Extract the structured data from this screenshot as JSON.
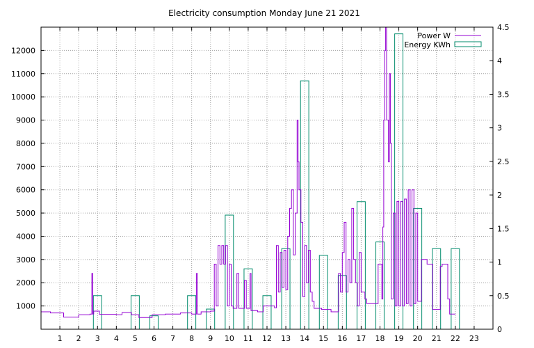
{
  "chart_data": {
    "type": "line",
    "title": "Electricity consumption Monday June 21 2021",
    "xlabel": "",
    "ylabel": "",
    "x_ticks": [
      "1",
      "2",
      "3",
      "4",
      "5",
      "6",
      "7",
      "8",
      "9",
      "10",
      "11",
      "12",
      "13",
      "14",
      "15",
      "16",
      "17",
      "18",
      "19",
      "20",
      "21",
      "22",
      "23"
    ],
    "xlim": [
      0,
      24
    ],
    "ylim": [
      0,
      13000
    ],
    "y_ticks": [
      "1000",
      "2000",
      "3000",
      "4000",
      "5000",
      "6000",
      "7000",
      "8000",
      "9000",
      "10000",
      "11000",
      "12000"
    ],
    "y2lim": [
      0,
      4.5
    ],
    "y2_ticks": [
      "0",
      "0.5",
      "1",
      "1.5",
      "2",
      "2.5",
      "3",
      "3.5",
      "4",
      "4.5"
    ],
    "grid": true,
    "legend_position": "top-right",
    "series": [
      {
        "name": "Power W",
        "axis": "left",
        "color": "#9400d3",
        "style": "steps",
        "points": [
          [
            0.0,
            750
          ],
          [
            0.5,
            700
          ],
          [
            1.2,
            520
          ],
          [
            2.0,
            620
          ],
          [
            2.6,
            650
          ],
          [
            2.7,
            2400
          ],
          [
            2.75,
            650
          ],
          [
            2.8,
            780
          ],
          [
            3.1,
            640
          ],
          [
            4.0,
            620
          ],
          [
            4.3,
            720
          ],
          [
            4.8,
            620
          ],
          [
            5.2,
            500
          ],
          [
            5.9,
            620
          ],
          [
            6.6,
            650
          ],
          [
            7.4,
            700
          ],
          [
            8.0,
            650
          ],
          [
            8.25,
            2400
          ],
          [
            8.3,
            650
          ],
          [
            8.5,
            750
          ],
          [
            9.0,
            780
          ],
          [
            9.2,
            2800
          ],
          [
            9.3,
            1000
          ],
          [
            9.4,
            3600
          ],
          [
            9.5,
            2800
          ],
          [
            9.6,
            3600
          ],
          [
            9.7,
            2800
          ],
          [
            9.8,
            3600
          ],
          [
            9.9,
            1000
          ],
          [
            10.0,
            2800
          ],
          [
            10.1,
            1000
          ],
          [
            10.2,
            900
          ],
          [
            10.4,
            2400
          ],
          [
            10.5,
            900
          ],
          [
            10.8,
            2100
          ],
          [
            10.9,
            900
          ],
          [
            11.1,
            2400
          ],
          [
            11.15,
            800
          ],
          [
            11.5,
            750
          ],
          [
            11.8,
            1000
          ],
          [
            12.4,
            920
          ],
          [
            12.5,
            3600
          ],
          [
            12.6,
            1600
          ],
          [
            12.7,
            3300
          ],
          [
            12.8,
            1800
          ],
          [
            12.9,
            3400
          ],
          [
            13.0,
            1700
          ],
          [
            13.1,
            4000
          ],
          [
            13.2,
            5200
          ],
          [
            13.3,
            6000
          ],
          [
            13.4,
            3200
          ],
          [
            13.5,
            5000
          ],
          [
            13.6,
            9000
          ],
          [
            13.65,
            7200
          ],
          [
            13.7,
            6000
          ],
          [
            13.8,
            4600
          ],
          [
            13.9,
            1400
          ],
          [
            14.0,
            3600
          ],
          [
            14.1,
            2000
          ],
          [
            14.2,
            3400
          ],
          [
            14.3,
            1600
          ],
          [
            14.4,
            1200
          ],
          [
            14.5,
            900
          ],
          [
            14.9,
            850
          ],
          [
            15.4,
            750
          ],
          [
            15.8,
            2400
          ],
          [
            15.9,
            1600
          ],
          [
            16.0,
            3300
          ],
          [
            16.1,
            4600
          ],
          [
            16.2,
            1600
          ],
          [
            16.3,
            3000
          ],
          [
            16.4,
            2000
          ],
          [
            16.5,
            5200
          ],
          [
            16.6,
            3000
          ],
          [
            16.7,
            2000
          ],
          [
            16.8,
            1000
          ],
          [
            16.9,
            3300
          ],
          [
            17.0,
            1600
          ],
          [
            17.2,
            1300
          ],
          [
            17.3,
            1100
          ],
          [
            17.8,
            1100
          ],
          [
            17.9,
            2800
          ],
          [
            18.1,
            1300
          ],
          [
            18.15,
            4400
          ],
          [
            18.2,
            9000
          ],
          [
            18.25,
            12000
          ],
          [
            18.3,
            13000
          ],
          [
            18.35,
            9000
          ],
          [
            18.45,
            7200
          ],
          [
            18.5,
            11000
          ],
          [
            18.55,
            8000
          ],
          [
            18.6,
            1300
          ],
          [
            18.7,
            5000
          ],
          [
            18.8,
            1000
          ],
          [
            18.9,
            5500
          ],
          [
            19.0,
            1000
          ],
          [
            19.1,
            5500
          ],
          [
            19.2,
            1000
          ],
          [
            19.3,
            5600
          ],
          [
            19.4,
            1100
          ],
          [
            19.5,
            6000
          ],
          [
            19.6,
            1000
          ],
          [
            19.7,
            6000
          ],
          [
            19.8,
            1100
          ],
          [
            19.9,
            5000
          ],
          [
            20.0,
            1200
          ],
          [
            20.2,
            3000
          ],
          [
            20.5,
            2800
          ],
          [
            20.8,
            850
          ],
          [
            21.2,
            2700
          ],
          [
            21.3,
            2800
          ],
          [
            21.6,
            1300
          ],
          [
            21.7,
            650
          ],
          [
            22.0,
            650
          ]
        ]
      },
      {
        "name": "Energy KWh",
        "axis": "right",
        "color": "#008b6b",
        "style": "boxes",
        "hours": [
          0,
          1,
          2,
          3,
          4,
          5,
          6,
          7,
          8,
          9,
          10,
          11,
          12,
          13,
          14,
          15,
          16,
          17,
          18,
          19,
          20,
          21,
          22,
          23
        ],
        "values": [
          0,
          0,
          0.5,
          0,
          0.5,
          0.2,
          0,
          0.5,
          0.3,
          1.7,
          0.9,
          0.5,
          1.2,
          3.7,
          1.1,
          0.8,
          1.9,
          1.3,
          4.4,
          1.8,
          1.2,
          1.2,
          0,
          0
        ]
      }
    ]
  }
}
